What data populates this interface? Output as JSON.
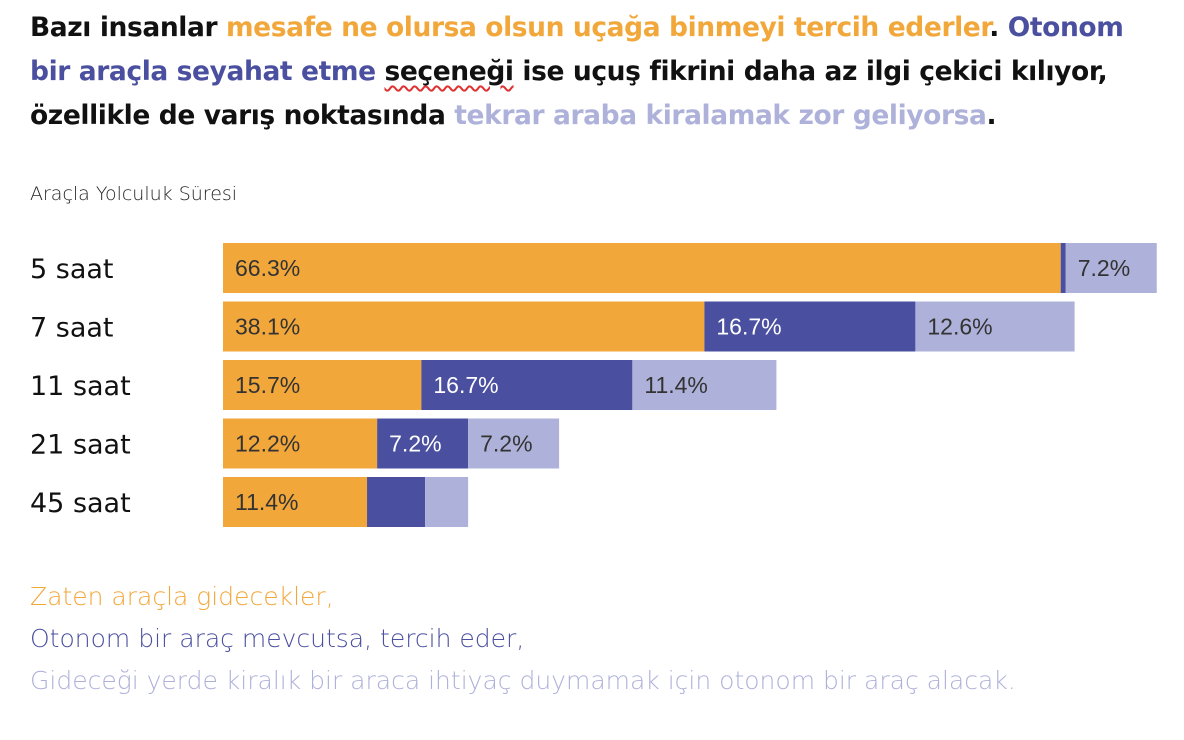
{
  "title": {
    "segments": [
      {
        "text": "Bazı insanlar ",
        "color": "#111111"
      },
      {
        "text": "mesafe ne olursa olsun uçağa binmeyi tercih ederler",
        "color": "#f2a73b"
      },
      {
        "text": ". ",
        "color": "#111111"
      },
      {
        "text": "Otonom bir araçla seyahat etme",
        "color": "#4a4f9f"
      },
      {
        "text": " ",
        "color": "#111111"
      },
      {
        "text": "seçeneği",
        "color": "#111111",
        "spellcheck": true
      },
      {
        "text": " ise uçuş fikrini daha az ilgi çekici kılıyor, özellikle de varış noktasında ",
        "color": "#111111"
      },
      {
        "text": "tekrar araba kiralamak zor geliyorsa",
        "color": "#aeb1d9"
      },
      {
        "text": ".",
        "color": "#111111"
      }
    ]
  },
  "chart_data": {
    "type": "bar",
    "orientation": "horizontal",
    "stacked": true,
    "title": "",
    "ylabel": "Araçla Yolculuk Süresi",
    "categories": [
      "5 saat",
      "7 saat",
      "11 saat",
      "21 saat",
      "45 saat"
    ],
    "series": [
      {
        "color": "#f2a73b",
        "values": [
          66.3,
          38.1,
          15.7,
          12.2,
          11.4
        ],
        "labels": [
          "66.3%",
          "38.1%",
          "15.7%",
          "12.2%",
          "11.4%"
        ]
      },
      {
        "color": "#4a4f9f",
        "values": [
          0.4,
          16.7,
          16.7,
          7.2,
          4.6
        ],
        "labels": [
          "",
          "16.7%",
          "16.7%",
          "7.2%",
          ""
        ]
      },
      {
        "color": "#aeb1d9",
        "values": [
          7.2,
          12.6,
          11.4,
          7.2,
          3.4
        ],
        "labels": [
          "7.2%",
          "12.6%",
          "11.4%",
          "7.2%",
          ""
        ]
      }
    ],
    "label_colors": [
      "#333333",
      "#ffffff",
      "#333333"
    ],
    "xlim": [
      0,
      74
    ],
    "grid": false,
    "legend": "bottom"
  },
  "legend": {
    "items": [
      {
        "text": "Zaten araçla gidecekler,",
        "color": "#f2a73b"
      },
      {
        "text": "Otonom bir araç mevcutsa, tercih eder,",
        "color": "#4a4f9f"
      },
      {
        "text": "Gideceği yerde kiralık bir araca ihtiyaç duymamak için otonom bir araç alacak.",
        "color": "#aeb1d9"
      }
    ]
  }
}
